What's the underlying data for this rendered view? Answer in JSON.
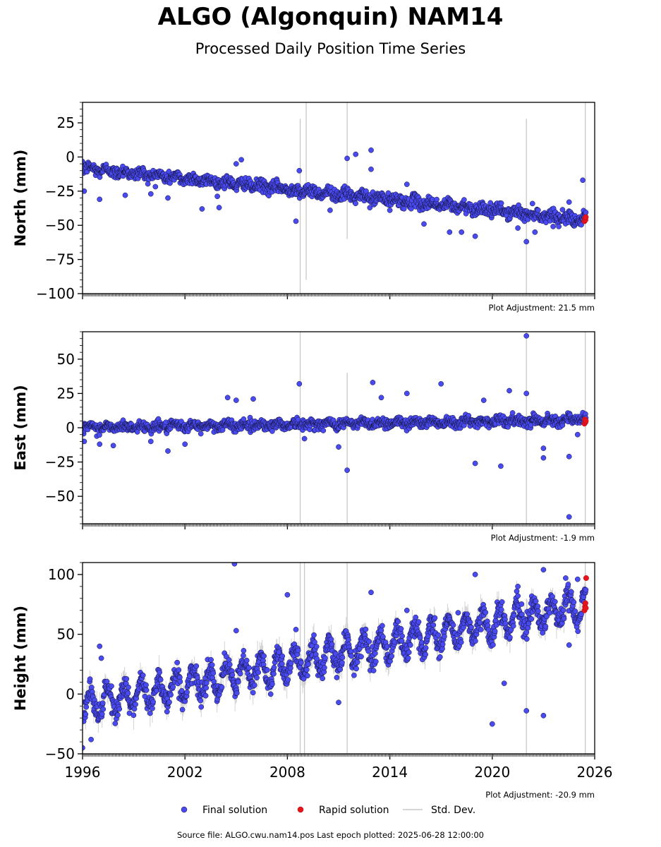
{
  "page": {
    "title": "ALGO (Algonquin) NAM14",
    "subtitle": "Processed Daily Position Time Series",
    "footer": "Source file: ALGO.cwu.nam14.pos  Last epoch plotted: 2025-06-28 12:00:00"
  },
  "colors": {
    "final": "#4a4af2",
    "final_edge": "#101030",
    "rapid": "#e8141c",
    "stddev": "#c8c8c8"
  },
  "chart_data": {
    "type": "scatter",
    "xlim": [
      1996,
      2026
    ],
    "x_ticks": [
      1996,
      2002,
      2008,
      2014,
      2020,
      2026
    ],
    "x_tick_labels": [
      "1996",
      "2002",
      "2008",
      "2014",
      "2020",
      "2026"
    ],
    "last_epoch": "2025-06-28 12:00:00",
    "legend": {
      "position": "bottom",
      "entries": [
        {
          "label": "Final solution",
          "marker": "circle",
          "color": "#4a4af2"
        },
        {
          "label": "Rapid solution",
          "marker": "circle",
          "color": "#e8141c"
        },
        {
          "label": "Std. Dev.",
          "marker": "line",
          "color": "#c8c8c8"
        }
      ]
    },
    "panels": [
      {
        "component": "north",
        "ylabel": "North (mm)",
        "ylim": [
          -100,
          40
        ],
        "y_ticks": [
          -100,
          -75,
          -50,
          -25,
          0,
          25
        ],
        "y_tick_labels": [
          "−100",
          "−75",
          "−50",
          "−25",
          "0",
          "25"
        ],
        "adjustment": "Plot Adjustment: 21.5 mm",
        "trend": {
          "x": [
            1996,
            2025.5
          ],
          "y": [
            -8,
            -46
          ]
        },
        "seasonal_amplitude": 1.5,
        "scatter_sd": 2.2,
        "rapid_points": {
          "x": [
            2025.4,
            2025.43,
            2025.46,
            2025.48
          ],
          "y": [
            -47,
            -45,
            -46,
            -44
          ]
        },
        "outliers": {
          "x": [
            1996.1,
            1997.0,
            1998.5,
            2000.0,
            2001.0,
            2003.0,
            2004.0,
            2005.0,
            2005.3,
            2008.5,
            2008.7,
            2010.5,
            2011.5,
            2012.0,
            2012.9,
            2012.9,
            2014.0,
            2015.0,
            2016.0,
            2017.5,
            2018.2,
            2019.0,
            2021.5,
            2022.0,
            2022.5,
            2024.5,
            2025.3
          ],
          "y": [
            -25,
            -31,
            -28,
            -27,
            -30,
            -38,
            -37,
            -5,
            -2,
            -47,
            -10,
            -39,
            -1,
            2,
            5,
            -9,
            -39,
            -20,
            -49,
            -55,
            -55,
            -58,
            -52,
            -62,
            -55,
            -33,
            -17
          ]
        },
        "stddev_spikes": [
          {
            "x": 2008.75,
            "y": [
              -100,
              28
            ]
          },
          {
            "x": 2009.1,
            "y": [
              -90,
              40
            ]
          },
          {
            "x": 2011.5,
            "y": [
              -60,
              40
            ]
          },
          {
            "x": 2022.0,
            "y": [
              -100,
              28
            ]
          },
          {
            "x": 2025.45,
            "y": [
              -100,
              40
            ]
          }
        ]
      },
      {
        "component": "east",
        "ylabel": "East (mm)",
        "ylim": [
          -70,
          70
        ],
        "y_ticks": [
          -50,
          -25,
          0,
          25,
          50
        ],
        "y_tick_labels": [
          "−50",
          "−25",
          "0",
          "25",
          "50"
        ],
        "adjustment": "Plot Adjustment: -1.9 mm",
        "trend": {
          "x": [
            1996,
            2025.5
          ],
          "y": [
            0,
            6
          ]
        },
        "seasonal_amplitude": 1.2,
        "scatter_sd": 1.8,
        "rapid_points": {
          "x": [
            2025.4,
            2025.43,
            2025.46,
            2025.48
          ],
          "y": [
            3,
            6,
            4,
            5
          ]
        },
        "outliers": {
          "x": [
            1996.1,
            1997.0,
            1997.8,
            2000.0,
            2001.0,
            2002.0,
            2004.5,
            2005.0,
            2006.0,
            2008.7,
            2009.0,
            2011.0,
            2011.5,
            2013.0,
            2013.5,
            2015.0,
            2017.0,
            2019.0,
            2019.5,
            2020.5,
            2021.0,
            2022.0,
            2022.0,
            2023.0,
            2023.0,
            2024.5,
            2024.5,
            2025.0
          ],
          "y": [
            -10,
            -12,
            -13,
            -10,
            -17,
            -12,
            22,
            20,
            21,
            32,
            -8,
            -14,
            -31,
            33,
            22,
            25,
            32,
            -26,
            20,
            -28,
            27,
            25,
            67,
            -15,
            -22,
            -21,
            -65,
            -5
          ]
        },
        "stddev_spikes": [
          {
            "x": 2008.75,
            "y": [
              -70,
              70
            ]
          },
          {
            "x": 2011.5,
            "y": [
              -70,
              40
            ]
          },
          {
            "x": 2022.0,
            "y": [
              -70,
              70
            ]
          },
          {
            "x": 2025.45,
            "y": [
              -70,
              70
            ]
          }
        ]
      },
      {
        "component": "height",
        "ylabel": "Height (mm)",
        "ylim": [
          -50,
          110
        ],
        "y_ticks": [
          -50,
          0,
          50,
          100
        ],
        "y_tick_labels": [
          "−50",
          "0",
          "50",
          "100"
        ],
        "adjustment": "Plot Adjustment: -20.9 mm",
        "trend": {
          "x": [
            1996,
            2025.5
          ],
          "y": [
            -10,
            75
          ]
        },
        "seasonal_amplitude": 11,
        "scatter_sd": 4.5,
        "rapid_points": {
          "x": [
            2025.4,
            2025.43,
            2025.46,
            2025.48,
            2025.5
          ],
          "y": [
            70,
            73,
            76,
            72,
            97
          ]
        },
        "outliers": {
          "x": [
            1996.0,
            1996.5,
            1997.0,
            1997.1,
            2004.9,
            2005.0,
            2007.5,
            2008.0,
            2008.5,
            2011.0,
            2012.9,
            2015.0,
            2018.0,
            2019.0,
            2020.0,
            2020.7,
            2021.5,
            2022.0,
            2023.0,
            2023.0,
            2024.3,
            2024.5,
            2025.0
          ],
          "y": [
            -45,
            -38,
            40,
            30,
            109,
            53,
            35,
            83,
            54,
            -7,
            85,
            70,
            68,
            100,
            -25,
            9,
            90,
            -14,
            104,
            -18,
            97,
            41,
            96
          ]
        },
        "stddev_spikes": [
          {
            "x": 2008.75,
            "y": [
              -50,
              110
            ]
          },
          {
            "x": 2009.0,
            "y": [
              -50,
              110
            ]
          },
          {
            "x": 2011.5,
            "y": [
              -50,
              110
            ]
          },
          {
            "x": 2022.0,
            "y": [
              -50,
              80
            ]
          },
          {
            "x": 2025.45,
            "y": [
              -50,
              110
            ]
          }
        ]
      }
    ]
  }
}
